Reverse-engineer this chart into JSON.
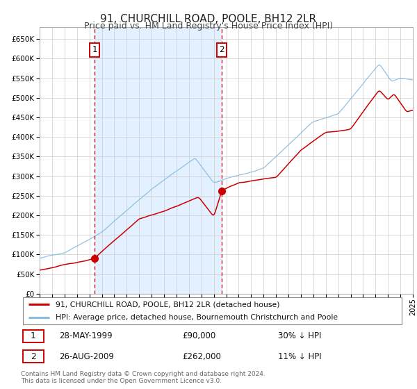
{
  "title": "91, CHURCHILL ROAD, POOLE, BH12 2LR",
  "subtitle": "Price paid vs. HM Land Registry's House Price Index (HPI)",
  "legend_line1": "91, CHURCHILL ROAD, POOLE, BH12 2LR (detached house)",
  "legend_line2": "HPI: Average price, detached house, Bournemouth Christchurch and Poole",
  "transaction1_date": "28-MAY-1999",
  "transaction1_price": 90000,
  "transaction1_pct": "30% ↓ HPI",
  "transaction2_date": "26-AUG-2009",
  "transaction2_price": 262000,
  "transaction2_pct": "11% ↓ HPI",
  "footer": "Contains HM Land Registry data © Crown copyright and database right 2024.\nThis data is licensed under the Open Government Licence v3.0.",
  "line_color_property": "#cc0000",
  "line_color_hpi": "#88bbdd",
  "bg_shaded": "#ddeeff",
  "dashed_line_color": "#cc0000",
  "marker_color": "#cc0000",
  "ylim": [
    0,
    680000
  ],
  "yticks": [
    0,
    50000,
    100000,
    150000,
    200000,
    250000,
    300000,
    350000,
    400000,
    450000,
    500000,
    550000,
    600000,
    650000
  ],
  "start_year": 1995,
  "end_year": 2025,
  "transaction1_year": 1999.41,
  "transaction2_year": 2009.65
}
